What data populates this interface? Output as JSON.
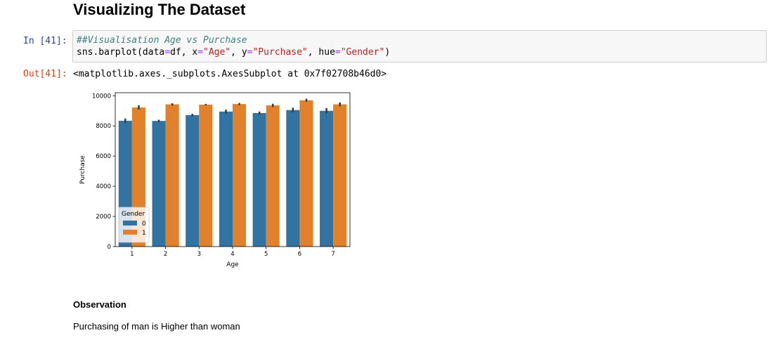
{
  "heading": "Visualizing The Dataset",
  "cell": {
    "in_prompt": "In [41]:",
    "out_prompt": "Out[41]:",
    "code_comment": "##Visualisation Age vs Purchase",
    "code_parts": {
      "p1": "sns.barplot(data",
      "eq1": "=",
      "p2": "df, x",
      "eq2": "=",
      "s1": "\"Age\"",
      "p3": ", y",
      "eq3": "=",
      "s2": "\"Purchase\"",
      "p4": ", hue",
      "eq4": "=",
      "s3": "\"Gender\"",
      "p5": ")"
    },
    "output_text": "<matplotlib.axes._subplots.AxesSubplot at 0x7f02708b46d0>"
  },
  "chart_data": {
    "type": "bar",
    "xlabel": "Age",
    "ylabel": "Purchase",
    "categories": [
      "1",
      "2",
      "3",
      "4",
      "5",
      "6",
      "7"
    ],
    "ylim": [
      0,
      10200
    ],
    "yticks": [
      "0",
      "2000",
      "4000",
      "6000",
      "8000",
      "10000"
    ],
    "series": [
      {
        "name": "0",
        "color": "#3274a1",
        "values": [
          8340,
          8330,
          8720,
          8950,
          8850,
          9050,
          9000
        ],
        "err": [
          150,
          80,
          80,
          130,
          100,
          160,
          180
        ]
      },
      {
        "name": "1",
        "color": "#e1812c",
        "values": [
          9220,
          9430,
          9410,
          9450,
          9360,
          9700,
          9430
        ],
        "err": [
          140,
          70,
          50,
          70,
          110,
          100,
          130
        ]
      }
    ],
    "legend": {
      "title": "Gender",
      "placement": "lower-left"
    },
    "grid": false
  },
  "observation": {
    "heading": "Observation",
    "text": "Purchasing of man is Higher than woman"
  }
}
